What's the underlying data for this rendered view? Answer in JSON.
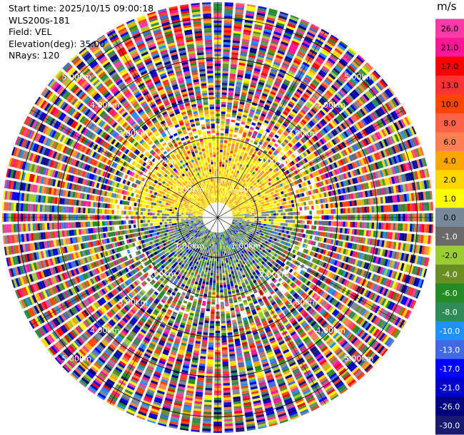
{
  "header": {
    "start_time": "Start time: 2025/10/15 09:00:18",
    "instrument": "WLS200s-181",
    "field": "Field: VEL",
    "elevation": "Elevation(deg): 35.00",
    "nrays": "NRays: 120"
  },
  "colorbar": {
    "unit": "m/s",
    "entries": [
      {
        "label": "26.0",
        "color": "#ff3aa6"
      },
      {
        "label": "21.0",
        "color": "#ff1493"
      },
      {
        "label": "17.0",
        "color": "#ff0000"
      },
      {
        "label": "13.0",
        "color": "#ff3333"
      },
      {
        "label": "10.0",
        "color": "#ff4500"
      },
      {
        "label": "8.0",
        "color": "#ff6347"
      },
      {
        "label": "6.0",
        "color": "#ff7f50"
      },
      {
        "label": "4.0",
        "color": "#ffa500"
      },
      {
        "label": "2.0",
        "color": "#ffd700"
      },
      {
        "label": "1.0",
        "color": "#ffff00"
      },
      {
        "label": "0.0",
        "color": "#778899"
      },
      {
        "label": "-1.0",
        "color": "#696969"
      },
      {
        "label": "-2.0",
        "color": "#9acd32"
      },
      {
        "label": "-4.0",
        "color": "#6b8e23"
      },
      {
        "label": "-6.0",
        "color": "#228b22"
      },
      {
        "label": "-8.0",
        "color": "#2e8b57"
      },
      {
        "label": "-10.0",
        "color": "#1e90ff"
      },
      {
        "label": "-13.0",
        "color": "#4169e1"
      },
      {
        "label": "-17.0",
        "color": "#0000ff"
      },
      {
        "label": "-21.0",
        "color": "#0000cd"
      },
      {
        "label": "-26.0",
        "color": "#000080"
      },
      {
        "label": "-30.0",
        "color": "#191970"
      }
    ]
  },
  "chart_data": {
    "type": "heatmap",
    "plot": "polar PPI",
    "field": "VEL",
    "nrays": 120,
    "range_rings_km": [
      1,
      2,
      3,
      4,
      5
    ],
    "ring_labels": [
      "1.00km",
      "2.00km",
      "3.00km",
      "4.00km",
      "5.00km"
    ],
    "range_max_km": 5.4,
    "spoke_angles_deg": [
      0,
      30,
      60,
      90,
      120,
      150,
      180,
      210,
      240,
      270,
      300,
      330
    ],
    "pattern": "near range: yellow (+1 to +4 m/s) to the north and green/grey (-6 to 0 m/s) to the south; beyond ~2 km mixed noise across all colour classes"
  }
}
